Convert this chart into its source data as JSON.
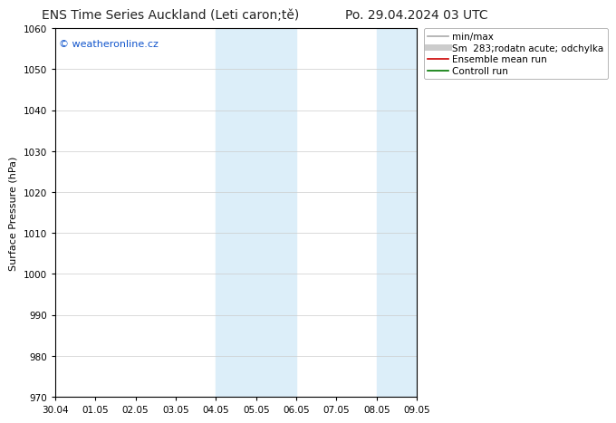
{
  "title_left": "ENS Time Series Auckland (Leti caron;tě)",
  "title_right": "Po. 29.04.2024 03 UTC",
  "ylabel": "Surface Pressure (hPa)",
  "ylim": [
    970,
    1060
  ],
  "yticks": [
    970,
    980,
    990,
    1000,
    1010,
    1020,
    1030,
    1040,
    1050,
    1060
  ],
  "xtick_labels": [
    "30.04",
    "01.05",
    "02.05",
    "03.05",
    "04.05",
    "05.05",
    "06.05",
    "07.05",
    "08.05",
    "09.05"
  ],
  "xtick_positions": [
    0,
    1,
    2,
    3,
    4,
    5,
    6,
    7,
    8,
    9
  ],
  "xlim": [
    0,
    9
  ],
  "shaded_bands": [
    {
      "xstart": 4.0,
      "xend": 6.0,
      "color": "#dceef9"
    },
    {
      "xstart": 8.0,
      "xend": 9.0,
      "color": "#dceef9"
    }
  ],
  "bg_color": "#ffffff",
  "plot_bg_color": "#ffffff",
  "border_color": "#000000",
  "grid_color": "#cccccc",
  "watermark_text": "© weatheronline.cz",
  "watermark_color": "#1155cc",
  "legend_entries": [
    {
      "label": "min/max",
      "color": "#aaaaaa",
      "lw": 1.2,
      "style": "-"
    },
    {
      "label": "Sm  283;rodatn acute; odchylka",
      "color": "#cccccc",
      "lw": 5,
      "style": "-"
    },
    {
      "label": "Ensemble mean run",
      "color": "#cc0000",
      "lw": 1.2,
      "style": "-"
    },
    {
      "label": "Controll run",
      "color": "#007700",
      "lw": 1.2,
      "style": "-"
    }
  ],
  "title_fontsize": 10,
  "axis_label_fontsize": 8,
  "tick_fontsize": 7.5,
  "watermark_fontsize": 8,
  "legend_fontsize": 7.5
}
